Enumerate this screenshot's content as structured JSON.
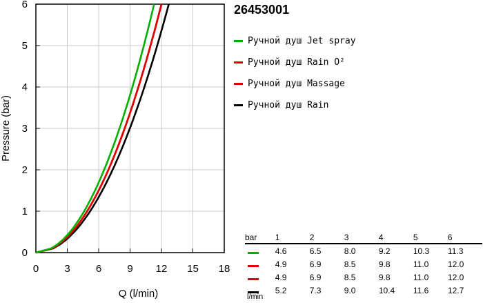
{
  "product_code": "26453001",
  "chart_data": {
    "type": "line",
    "xlabel": "Q (l/min)",
    "ylabel": "Pressure (bar)",
    "xlim": [
      0,
      18
    ],
    "ylim": [
      0,
      6
    ],
    "xticks": [
      0,
      3,
      6,
      9,
      12,
      15,
      18
    ],
    "yticks": [
      0,
      1,
      2,
      3,
      4,
      5,
      6
    ],
    "grid": true,
    "legend_position": "right",
    "series": [
      {
        "name": "Ручной душ Jet spray",
        "color": "#00b000",
        "x": [
          0,
          4.6,
          6.5,
          8.0,
          9.2,
          10.3,
          11.3
        ],
        "y": [
          0,
          1,
          2,
          3,
          4,
          5,
          6
        ]
      },
      {
        "name": "Ручной душ Rain O²",
        "color": "#e00000",
        "x": [
          0,
          4.9,
          6.9,
          8.5,
          9.8,
          11.0,
          12.0
        ],
        "y": [
          0,
          1,
          2,
          3,
          4,
          5,
          6
        ]
      },
      {
        "name": "Ручной душ Massage",
        "color": "#e00000",
        "x": [
          0,
          4.9,
          6.9,
          8.5,
          9.8,
          11.0,
          12.0
        ],
        "y": [
          0,
          1,
          2,
          3,
          4,
          5,
          6
        ]
      },
      {
        "name": "Ручной душ Rain",
        "color": "#000000",
        "x": [
          0,
          5.2,
          7.3,
          9.0,
          10.4,
          11.6,
          12.7
        ],
        "y": [
          0,
          1,
          2,
          3,
          4,
          5,
          6
        ]
      }
    ]
  },
  "table": {
    "header_label": "bar",
    "unit_label": "l/min",
    "pressures": [
      "1",
      "2",
      "3",
      "4",
      "5",
      "6"
    ],
    "rows": [
      {
        "color": "#00b000",
        "values": [
          "4.6",
          "6.5",
          "8.0",
          "9.2",
          "10.3",
          "11.3"
        ]
      },
      {
        "color": "#e00000",
        "values": [
          "4.9",
          "6.9",
          "8.5",
          "9.8",
          "11.0",
          "12.0"
        ]
      },
      {
        "color": "#e00000",
        "values": [
          "4.9",
          "6.9",
          "8.5",
          "9.8",
          "11.0",
          "12.0"
        ]
      },
      {
        "color": "#000000",
        "values": [
          "5.2",
          "7.3",
          "9.0",
          "10.4",
          "11.6",
          "12.7"
        ]
      }
    ]
  }
}
